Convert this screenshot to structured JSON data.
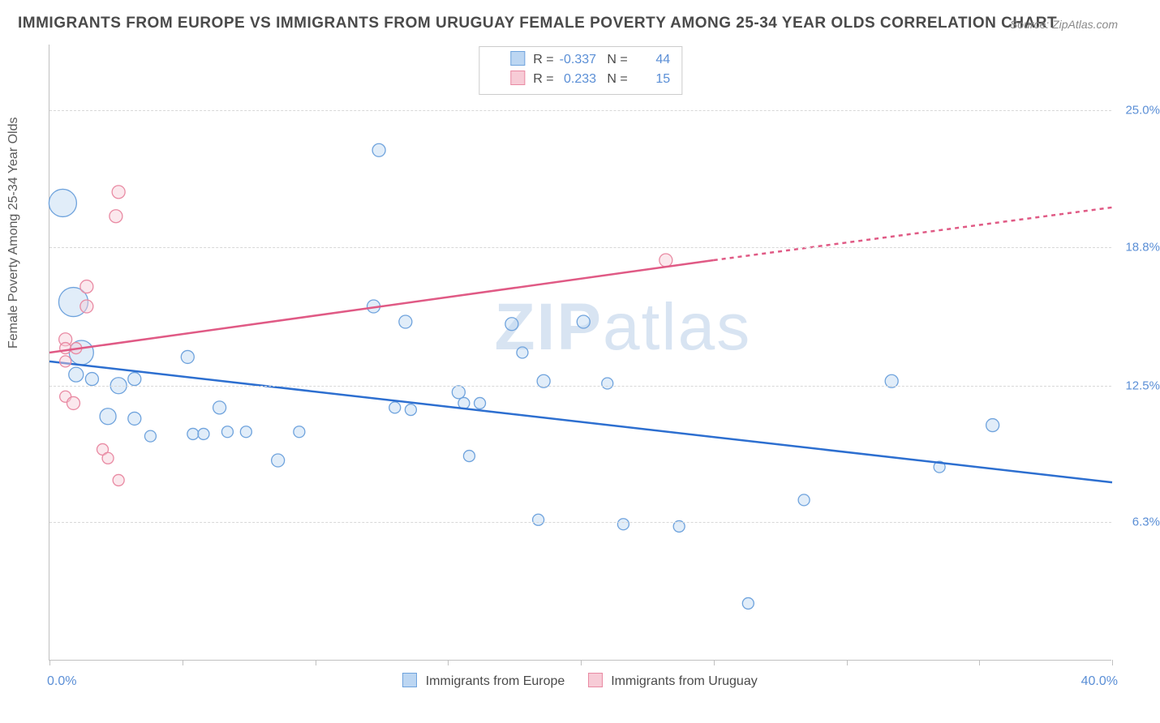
{
  "title": "IMMIGRANTS FROM EUROPE VS IMMIGRANTS FROM URUGUAY FEMALE POVERTY AMONG 25-34 YEAR OLDS CORRELATION CHART",
  "source": "Source: ZipAtlas.com",
  "y_axis_label": "Female Poverty Among 25-34 Year Olds",
  "watermark_bold": "ZIP",
  "watermark_light": "atlas",
  "xlim": [
    0,
    40
  ],
  "ylim": [
    0,
    28
  ],
  "x_min_label": "0.0%",
  "x_max_label": "40.0%",
  "y_ticks": [
    {
      "v": 6.3,
      "label": "6.3%"
    },
    {
      "v": 12.5,
      "label": "12.5%"
    },
    {
      "v": 18.8,
      "label": "18.8%"
    },
    {
      "v": 25.0,
      "label": "25.0%"
    }
  ],
  "x_tick_positions": [
    0,
    5,
    10,
    15,
    20,
    25,
    30,
    35,
    40
  ],
  "grid_color": "#d8d8d8",
  "background_color": "#ffffff",
  "series": [
    {
      "name": "Immigrants from Europe",
      "color_fill": "#bcd6f2",
      "color_stroke": "#6fa3dd",
      "r_value": "-0.337",
      "n_value": "44",
      "trend": {
        "x1": 0,
        "y1": 13.6,
        "x2": 40,
        "y2": 8.1,
        "color": "#2d6fd0",
        "dash": ""
      },
      "points": [
        {
          "x": 0.5,
          "y": 20.8,
          "r": 17
        },
        {
          "x": 0.9,
          "y": 16.3,
          "r": 18
        },
        {
          "x": 1.2,
          "y": 14.0,
          "r": 15
        },
        {
          "x": 1.0,
          "y": 13.0,
          "r": 9
        },
        {
          "x": 1.6,
          "y": 12.8,
          "r": 8
        },
        {
          "x": 2.6,
          "y": 12.5,
          "r": 10
        },
        {
          "x": 2.2,
          "y": 11.1,
          "r": 10
        },
        {
          "x": 3.2,
          "y": 11.0,
          "r": 8
        },
        {
          "x": 3.8,
          "y": 10.2,
          "r": 7
        },
        {
          "x": 3.2,
          "y": 12.8,
          "r": 8
        },
        {
          "x": 5.2,
          "y": 13.8,
          "r": 8
        },
        {
          "x": 5.4,
          "y": 10.3,
          "r": 7
        },
        {
          "x": 5.8,
          "y": 10.3,
          "r": 7
        },
        {
          "x": 6.7,
          "y": 10.4,
          "r": 7
        },
        {
          "x": 6.4,
          "y": 11.5,
          "r": 8
        },
        {
          "x": 7.4,
          "y": 10.4,
          "r": 7
        },
        {
          "x": 8.6,
          "y": 9.1,
          "r": 8
        },
        {
          "x": 9.4,
          "y": 10.4,
          "r": 7
        },
        {
          "x": 12.4,
          "y": 23.2,
          "r": 8
        },
        {
          "x": 12.2,
          "y": 16.1,
          "r": 8
        },
        {
          "x": 13.4,
          "y": 15.4,
          "r": 8
        },
        {
          "x": 13.0,
          "y": 11.5,
          "r": 7
        },
        {
          "x": 13.6,
          "y": 11.4,
          "r": 7
        },
        {
          "x": 15.4,
          "y": 12.2,
          "r": 8
        },
        {
          "x": 15.6,
          "y": 11.7,
          "r": 7
        },
        {
          "x": 16.2,
          "y": 11.7,
          "r": 7
        },
        {
          "x": 15.8,
          "y": 9.3,
          "r": 7
        },
        {
          "x": 17.4,
          "y": 15.3,
          "r": 8
        },
        {
          "x": 17.8,
          "y": 14.0,
          "r": 7
        },
        {
          "x": 18.4,
          "y": 6.4,
          "r": 7
        },
        {
          "x": 18.6,
          "y": 12.7,
          "r": 8
        },
        {
          "x": 20.1,
          "y": 15.4,
          "r": 8
        },
        {
          "x": 21.6,
          "y": 6.2,
          "r": 7
        },
        {
          "x": 21.0,
          "y": 12.6,
          "r": 7
        },
        {
          "x": 23.7,
          "y": 6.1,
          "r": 7
        },
        {
          "x": 26.3,
          "y": 2.6,
          "r": 7
        },
        {
          "x": 28.4,
          "y": 7.3,
          "r": 7
        },
        {
          "x": 31.7,
          "y": 12.7,
          "r": 8
        },
        {
          "x": 33.5,
          "y": 8.8,
          "r": 7
        },
        {
          "x": 35.5,
          "y": 10.7,
          "r": 8
        }
      ]
    },
    {
      "name": "Immigrants from Uruguay",
      "color_fill": "#f7cbd6",
      "color_stroke": "#e98aa3",
      "r_value": "0.233",
      "n_value": "15",
      "trend": {
        "x1": 0,
        "y1": 14.0,
        "x2": 25,
        "y2": 18.2,
        "color": "#e05a85",
        "dash": "",
        "ext_x2": 40,
        "ext_y2": 20.6
      },
      "points": [
        {
          "x": 0.6,
          "y": 14.6,
          "r": 8
        },
        {
          "x": 0.6,
          "y": 14.2,
          "r": 7
        },
        {
          "x": 1.0,
          "y": 14.2,
          "r": 7
        },
        {
          "x": 0.6,
          "y": 13.6,
          "r": 7
        },
        {
          "x": 1.4,
          "y": 17.0,
          "r": 8
        },
        {
          "x": 1.4,
          "y": 16.1,
          "r": 8
        },
        {
          "x": 2.6,
          "y": 21.3,
          "r": 8
        },
        {
          "x": 2.5,
          "y": 20.2,
          "r": 8
        },
        {
          "x": 0.6,
          "y": 12.0,
          "r": 7
        },
        {
          "x": 0.9,
          "y": 11.7,
          "r": 8
        },
        {
          "x": 2.0,
          "y": 9.6,
          "r": 7
        },
        {
          "x": 2.2,
          "y": 9.2,
          "r": 7
        },
        {
          "x": 2.6,
          "y": 8.2,
          "r": 7
        },
        {
          "x": 23.2,
          "y": 18.2,
          "r": 8
        }
      ]
    }
  ],
  "bottom_legend": {
    "series1_label": "Immigrants from Europe",
    "series2_label": "Immigrants from Uruguay"
  }
}
